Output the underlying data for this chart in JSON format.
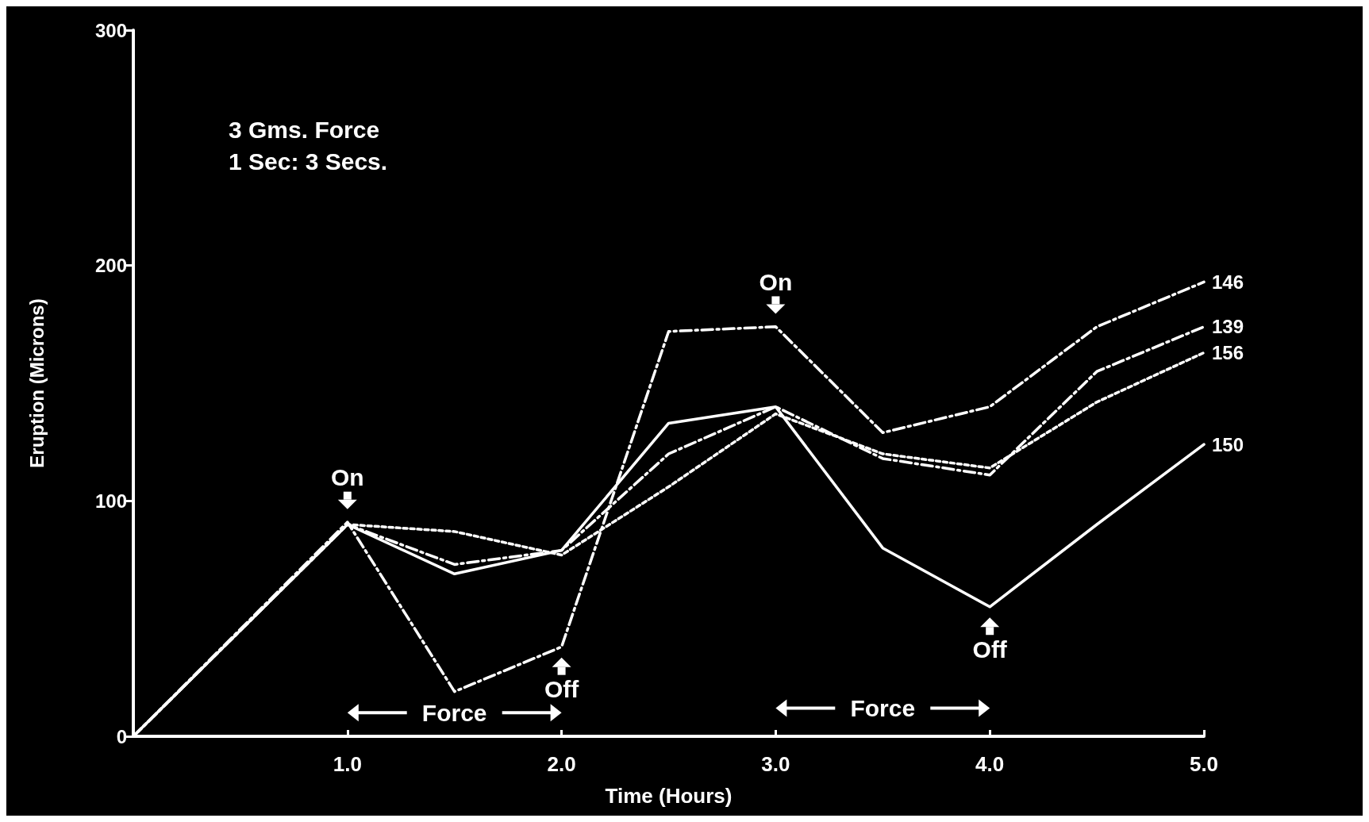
{
  "chart_data": {
    "type": "line",
    "xlabel": "Time (Hours)",
    "ylabel": "Eruption (Microns)",
    "x": [
      0,
      1,
      1.5,
      2,
      2.5,
      3,
      3.5,
      4,
      4.5,
      5
    ],
    "xlim": [
      0,
      5
    ],
    "xticks": [
      {
        "value": 1,
        "label": "1.0"
      },
      {
        "value": 2,
        "label": "2.0"
      },
      {
        "value": 3,
        "label": "3.0"
      },
      {
        "value": 4,
        "label": "4.0"
      },
      {
        "value": 5,
        "label": "5.0"
      }
    ],
    "ylim": [
      0,
      300
    ],
    "yticks": [
      0,
      100,
      200,
      300
    ],
    "grid": false,
    "legend": false,
    "marker": "none",
    "series": [
      {
        "name": "146",
        "color": "#ffffff",
        "line_style": "dashed",
        "values": [
          0,
          91,
          19,
          38,
          172,
          174,
          129,
          140,
          174,
          193
        ]
      },
      {
        "name": "139",
        "color": "#ffffff",
        "line_style": "dashed",
        "values": [
          0,
          90,
          73,
          79,
          120,
          140,
          118,
          111,
          155,
          174
        ]
      },
      {
        "name": "156",
        "color": "#ffffff",
        "line_style": "dotted",
        "values": [
          0,
          90,
          87,
          77,
          106,
          137,
          120,
          114,
          142,
          163
        ]
      },
      {
        "name": "150",
        "color": "#ffffff",
        "line_style": "solid",
        "values": [
          0,
          90,
          69,
          79,
          133,
          140,
          80,
          55,
          90,
          124
        ]
      }
    ],
    "annotations": [
      "3 Gms. Force",
      "1 Sec: 3 Secs.",
      "On",
      "On",
      "Off",
      "Off",
      "Force",
      "Force"
    ]
  }
}
